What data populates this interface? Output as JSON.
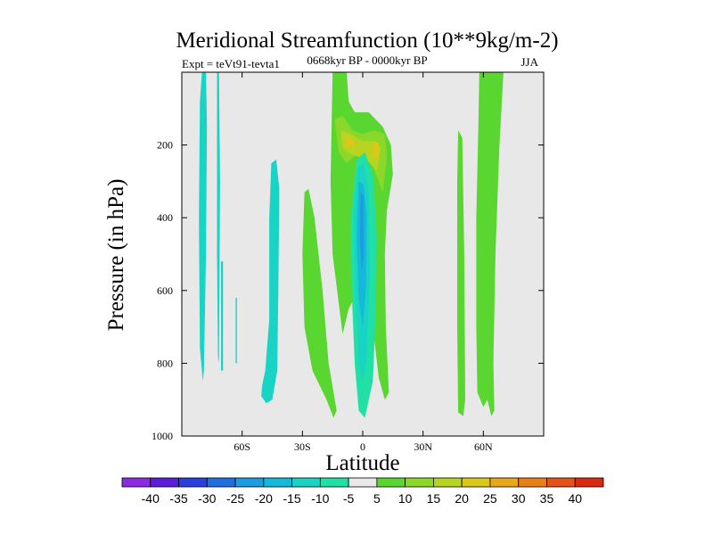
{
  "chart_data": {
    "type": "contour",
    "title": "Meridional Streamfunction (10**9kg/m-2)",
    "subtitle_left": "Expt = teVt91-tevta1",
    "subtitle_center": "0668kyr BP - 0000kyr BP",
    "subtitle_right": "JJA",
    "xlabel": "Latitude",
    "ylabel": "Pressure (in hPa)",
    "xlim": [
      -90,
      90
    ],
    "ylim": [
      1000,
      0
    ],
    "x_ticks": [
      {
        "value": -60,
        "label": "60S"
      },
      {
        "value": -30,
        "label": "30S"
      },
      {
        "value": 0,
        "label": "0"
      },
      {
        "value": 30,
        "label": "30N"
      },
      {
        "value": 60,
        "label": "60N"
      }
    ],
    "y_ticks": [
      {
        "value": 200,
        "label": "200"
      },
      {
        "value": 400,
        "label": "400"
      },
      {
        "value": 600,
        "label": "600"
      },
      {
        "value": 800,
        "label": "800"
      },
      {
        "value": 1000,
        "label": "1000"
      }
    ],
    "background_color": "#e8e8e8",
    "colorbar": {
      "levels": [
        "-40",
        "-35",
        "-30",
        "-25",
        "-20",
        "-15",
        "-10",
        "-5",
        "5",
        "10",
        "15",
        "20",
        "25",
        "30",
        "35",
        "40"
      ],
      "colors": [
        "#8a2be2",
        "#5a1ed8",
        "#2b3fdc",
        "#1f6fe0",
        "#1f9be0",
        "#14b8d8",
        "#19d3c4",
        "#20e0a6",
        "#e8e8e8",
        "#5ad630",
        "#8bd82a",
        "#b6d420",
        "#dcc81a",
        "#e8a818",
        "#e88018",
        "#e45418",
        "#d82a10"
      ]
    },
    "regions": [
      {
        "name": "sh-polar-band-1",
        "level_index": 6,
        "points": [
          [
            -80,
            0
          ],
          [
            -78,
            0
          ],
          [
            -77.5,
            150
          ],
          [
            -78,
            500
          ],
          [
            -79,
            820
          ],
          [
            -79.5,
            850
          ],
          [
            -81,
            760
          ],
          [
            -81.5,
            400
          ],
          [
            -81,
            80
          ]
        ]
      },
      {
        "name": "sh-polar-band-2",
        "level_index": 6,
        "points": [
          [
            -72.5,
            0
          ],
          [
            -71.5,
            0
          ],
          [
            -71,
            300
          ],
          [
            -71.5,
            800
          ],
          [
            -72,
            780
          ],
          [
            -72.5,
            500
          ]
        ]
      },
      {
        "name": "sh-polar-band-3",
        "level_index": 6,
        "points": [
          [
            -70.5,
            520
          ],
          [
            -69.5,
            520
          ],
          [
            -69.5,
            820
          ],
          [
            -70.5,
            820
          ]
        ]
      },
      {
        "name": "sh-polar-band-4",
        "level_index": 6,
        "points": [
          [
            -63.2,
            620
          ],
          [
            -62.6,
            620
          ],
          [
            -62.6,
            800
          ],
          [
            -63.2,
            800
          ]
        ]
      },
      {
        "name": "sh-midlat-cell",
        "level_index": 6,
        "points": [
          [
            -45.5,
            250
          ],
          [
            -43,
            240
          ],
          [
            -41.5,
            320
          ],
          [
            -42,
            600
          ],
          [
            -42.5,
            820
          ],
          [
            -45,
            900
          ],
          [
            -48,
            910
          ],
          [
            -50.5,
            890
          ],
          [
            -50,
            860
          ],
          [
            -48.5,
            820
          ],
          [
            -46.5,
            680
          ],
          [
            -46.5,
            400
          ]
        ]
      },
      {
        "name": "sh-subtropical-green",
        "level_index": 9,
        "points": [
          [
            -29,
            330
          ],
          [
            -27,
            320
          ],
          [
            -24,
            400
          ],
          [
            -20,
            600
          ],
          [
            -17,
            800
          ],
          [
            -13,
            930
          ],
          [
            -14.5,
            950
          ],
          [
            -18,
            900
          ],
          [
            -25,
            820
          ],
          [
            -29,
            700
          ],
          [
            -30,
            500
          ]
        ]
      },
      {
        "name": "tropical-green-column",
        "level_index": 9,
        "points": [
          [
            -15,
            0
          ],
          [
            -8,
            0
          ],
          [
            -7,
            80
          ],
          [
            -4,
            110
          ],
          [
            3,
            110
          ],
          [
            10,
            150
          ],
          [
            14,
            200
          ],
          [
            15,
            280
          ],
          [
            12,
            380
          ],
          [
            11,
            500
          ],
          [
            11.5,
            700
          ],
          [
            13,
            880
          ],
          [
            11,
            900
          ],
          [
            8,
            840
          ],
          [
            5,
            700
          ],
          [
            2,
            600
          ],
          [
            -2,
            600
          ],
          [
            -7,
            650
          ],
          [
            -10,
            720
          ],
          [
            -15,
            500
          ],
          [
            -16,
            300
          ]
        ]
      },
      {
        "name": "tropical-yellow-core",
        "level_index": 10,
        "points": [
          [
            -14,
            130
          ],
          [
            -10,
            120
          ],
          [
            -5,
            160
          ],
          [
            0,
            170
          ],
          [
            6,
            160
          ],
          [
            11,
            170
          ],
          [
            12,
            230
          ],
          [
            10,
            330
          ],
          [
            5,
            260
          ],
          [
            -2,
            220
          ],
          [
            -8,
            250
          ],
          [
            -12,
            220
          ]
        ]
      },
      {
        "name": "tropical-yellow-center",
        "level_index": 11,
        "points": [
          [
            -11,
            160
          ],
          [
            -6,
            170
          ],
          [
            0,
            190
          ],
          [
            6,
            190
          ],
          [
            9,
            210
          ],
          [
            7,
            270
          ],
          [
            2,
            240
          ],
          [
            -4,
            230
          ],
          [
            -10,
            210
          ]
        ]
      },
      {
        "name": "tropical-orange-spot",
        "level_index": 12,
        "points": [
          [
            -9,
            175
          ],
          [
            -5,
            180
          ],
          [
            -4,
            205
          ],
          [
            -8,
            205
          ]
        ]
      },
      {
        "name": "tropical-orange-spot-2",
        "level_index": 12,
        "points": [
          [
            5,
            190
          ],
          [
            8,
            195
          ],
          [
            8,
            240
          ],
          [
            5,
            230
          ]
        ]
      },
      {
        "name": "equatorial-cell-outer",
        "level_index": 7,
        "points": [
          [
            -3,
            240
          ],
          [
            1,
            220
          ],
          [
            5,
            280
          ],
          [
            7,
            450
          ],
          [
            6.5,
            650
          ],
          [
            5,
            850
          ],
          [
            1,
            950
          ],
          [
            -2,
            930
          ],
          [
            -4,
            800
          ],
          [
            -5.5,
            600
          ],
          [
            -6,
            400
          ]
        ]
      },
      {
        "name": "equatorial-cell-mid",
        "level_index": 6,
        "points": [
          [
            -2.5,
            260
          ],
          [
            0.5,
            250
          ],
          [
            3,
            330
          ],
          [
            3.5,
            550
          ],
          [
            2,
            780
          ],
          [
            0,
            850
          ],
          [
            -2,
            800
          ],
          [
            -3.5,
            600
          ],
          [
            -4.5,
            400
          ]
        ]
      },
      {
        "name": "equatorial-cell-inner",
        "level_index": 5,
        "points": [
          [
            -2,
            300
          ],
          [
            0.5,
            310
          ],
          [
            2,
            400
          ],
          [
            1.5,
            600
          ],
          [
            0,
            700
          ],
          [
            -2,
            620
          ],
          [
            -3,
            450
          ]
        ]
      },
      {
        "name": "equatorial-cell-core",
        "level_index": 4,
        "points": [
          [
            -1,
            330
          ],
          [
            0.5,
            340
          ],
          [
            0.5,
            500
          ],
          [
            -0.5,
            550
          ],
          [
            -1.5,
            450
          ]
        ]
      },
      {
        "name": "nh-midlat-band",
        "level_index": 9,
        "points": [
          [
            47.5,
            160
          ],
          [
            49.5,
            180
          ],
          [
            50.5,
            500
          ],
          [
            51,
            900
          ],
          [
            50,
            945
          ],
          [
            47.5,
            935
          ],
          [
            47,
            700
          ],
          [
            47,
            300
          ]
        ]
      },
      {
        "name": "nh-polar-band",
        "level_index": 9,
        "points": [
          [
            58,
            0
          ],
          [
            70,
            0
          ],
          [
            68,
            200
          ],
          [
            66,
            500
          ],
          [
            65,
            800
          ],
          [
            65.5,
            930
          ],
          [
            64,
            945
          ],
          [
            62,
            900
          ],
          [
            60,
            920
          ],
          [
            57,
            880
          ],
          [
            56.5,
            700
          ],
          [
            56.5,
            400
          ],
          [
            57.5,
            150
          ]
        ]
      }
    ]
  }
}
